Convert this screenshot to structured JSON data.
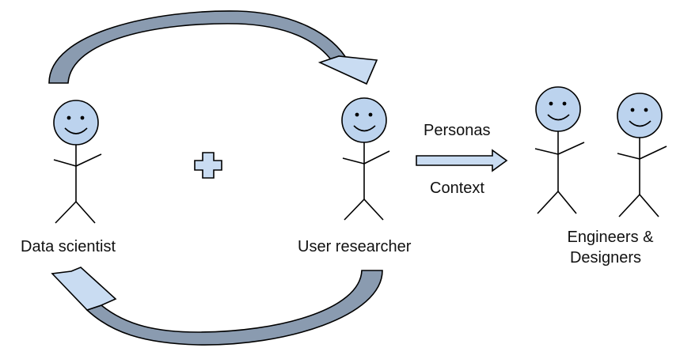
{
  "labels": {
    "data_scientist": "Data scientist",
    "user_researcher": "User researcher",
    "personas": "Personas",
    "context": "Context",
    "engineers_line1": "Engineers &",
    "engineers_line2": "Designers"
  },
  "colors": {
    "fill": "#c9dcf2",
    "head_fill": "#bcd3ee",
    "arrow_dark": "#8a9bb0",
    "stroke": "#000000"
  },
  "icons": {
    "plus": "plus-icon",
    "arrow": "right-arrow-icon"
  }
}
